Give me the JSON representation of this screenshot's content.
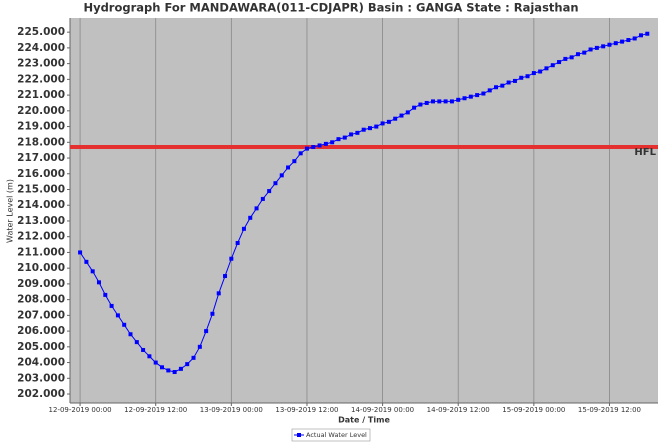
{
  "chart_data": {
    "type": "line",
    "title": "Hydrograph For MANDAWARA(011-CDJAPR) Basin : GANGA State : Rajasthan",
    "x_label": "Date / Time",
    "y_label": "Water Level (m)",
    "xlim": [
      -1.6,
      91.7
    ],
    "ylim": [
      201.43,
      225.9
    ],
    "xticks": [
      {
        "value": 0,
        "label": "12-09-2019 00:00"
      },
      {
        "value": 12,
        "label": "12-09-2019 12:00"
      },
      {
        "value": 24,
        "label": "13-09-2019 00:00"
      },
      {
        "value": 36,
        "label": "13-09-2019 12:00"
      },
      {
        "value": 48,
        "label": "14-09-2019 00:00"
      },
      {
        "value": 60,
        "label": "14-09-2019 12:00"
      },
      {
        "value": 72,
        "label": "15-09-2019 00:00"
      },
      {
        "value": 84,
        "label": "15-09-2019 12:00"
      }
    ],
    "yticks": [
      {
        "value": 202,
        "label": "202.000"
      },
      {
        "value": 203,
        "label": "203.000"
      },
      {
        "value": 204,
        "label": "204.000"
      },
      {
        "value": 205,
        "label": "205.000"
      },
      {
        "value": 206,
        "label": "206.000"
      },
      {
        "value": 207,
        "label": "207.000"
      },
      {
        "value": 208,
        "label": "208.000"
      },
      {
        "value": 209,
        "label": "209.000"
      },
      {
        "value": 210,
        "label": "210.000"
      },
      {
        "value": 211,
        "label": "211.000"
      },
      {
        "value": 212,
        "label": "212.000"
      },
      {
        "value": 213,
        "label": "213.000"
      },
      {
        "value": 214,
        "label": "214.000"
      },
      {
        "value": 215,
        "label": "215.000"
      },
      {
        "value": 216,
        "label": "216.000"
      },
      {
        "value": 217,
        "label": "217.000"
      },
      {
        "value": 218,
        "label": "218.000"
      },
      {
        "value": 219,
        "label": "219.000"
      },
      {
        "value": 220,
        "label": "220.000"
      },
      {
        "value": 221,
        "label": "221.000"
      },
      {
        "value": 222,
        "label": "222.000"
      },
      {
        "value": 223,
        "label": "223.000"
      },
      {
        "value": 224,
        "label": "224.000"
      },
      {
        "value": 225,
        "label": "225.000"
      }
    ],
    "grid": true,
    "threshold": {
      "value": 217.7,
      "label": "HFL",
      "color": "#e53030"
    },
    "x": [
      0,
      1,
      2,
      3,
      4,
      5,
      6,
      7,
      8,
      9,
      10,
      11,
      12,
      13,
      14,
      15,
      16,
      17,
      18,
      19,
      20,
      21,
      22,
      23,
      24,
      25,
      26,
      27,
      28,
      29,
      30,
      31,
      32,
      33,
      34,
      35,
      36,
      37,
      38,
      39,
      40,
      41,
      42,
      43,
      44,
      45,
      46,
      47,
      48,
      49,
      50,
      51,
      52,
      53,
      54,
      55,
      56,
      57,
      58,
      59,
      60,
      61,
      62,
      63,
      64,
      65,
      66,
      67,
      68,
      69,
      70,
      71,
      72,
      73,
      74,
      75,
      76,
      77,
      78,
      79,
      80,
      81,
      82,
      83,
      84,
      85,
      86,
      87,
      88,
      89,
      90
    ],
    "series": [
      {
        "name": "Actual Water Level",
        "color": "#0000ff",
        "values": [
          211.0,
          210.4,
          209.8,
          209.1,
          208.3,
          207.6,
          207.0,
          206.4,
          205.8,
          205.3,
          204.8,
          204.4,
          204.0,
          203.7,
          203.5,
          203.4,
          203.6,
          203.9,
          204.3,
          205.0,
          206.0,
          207.1,
          208.4,
          209.5,
          210.6,
          211.6,
          212.5,
          213.2,
          213.8,
          214.4,
          214.9,
          215.4,
          215.9,
          216.4,
          216.8,
          217.3,
          217.6,
          217.7,
          217.8,
          217.9,
          218.0,
          218.2,
          218.3,
          218.5,
          218.6,
          218.8,
          218.9,
          219.0,
          219.2,
          219.3,
          219.5,
          219.7,
          219.9,
          220.2,
          220.4,
          220.5,
          220.6,
          220.6,
          220.6,
          220.6,
          220.7,
          220.8,
          220.9,
          221.0,
          221.1,
          221.3,
          221.5,
          221.6,
          221.8,
          221.9,
          222.1,
          222.2,
          222.4,
          222.5,
          222.7,
          222.9,
          223.1,
          223.3,
          223.4,
          223.6,
          223.7,
          223.9,
          224.0,
          224.1,
          224.2,
          224.3,
          224.4,
          224.5,
          224.6,
          224.8,
          224.9
        ]
      }
    ]
  }
}
